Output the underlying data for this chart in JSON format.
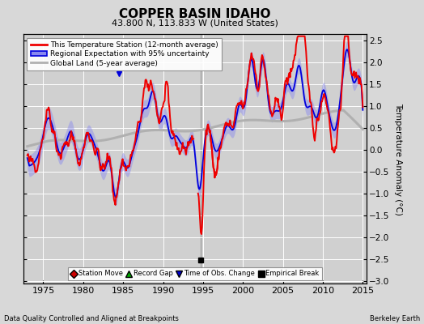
{
  "title": "COPPER BASIN IDAHO",
  "subtitle": "43.800 N, 113.833 W (United States)",
  "xlabel_note": "Data Quality Controlled and Aligned at Breakpoints",
  "xlabel_right": "Berkeley Earth",
  "ylabel": "Temperature Anomaly (°C)",
  "xlim": [
    1972.5,
    2015.5
  ],
  "ylim": [
    -3.05,
    2.65
  ],
  "yticks": [
    -3,
    -2.5,
    -2,
    -1.5,
    -1,
    -0.5,
    0,
    0.5,
    1,
    1.5,
    2,
    2.5
  ],
  "xticks": [
    1975,
    1980,
    1985,
    1990,
    1995,
    2000,
    2005,
    2010,
    2015
  ],
  "bg_color": "#d8d8d8",
  "plot_bg_color": "#d0d0d0",
  "grid_color": "#ffffff",
  "red_line_color": "#ee0000",
  "blue_line_color": "#0000dd",
  "blue_fill_color": "#8888ee",
  "gray_line_color": "#b0b0b0",
  "empirical_break_x": 1994.7,
  "empirical_break_y": -2.52,
  "tobs_change_x": 1984.5,
  "tobs_change_y": 1.75,
  "vertical_line_x": 1994.7,
  "seed": 42
}
